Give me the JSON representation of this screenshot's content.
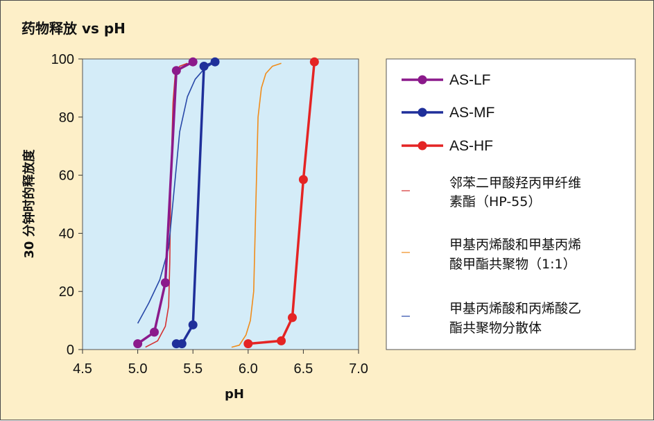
{
  "chart_data": {
    "type": "line",
    "title": "药物释放 vs pH",
    "xlabel": "pH",
    "ylabel": "30 分钟时的释放度",
    "xlim": [
      4.5,
      7.0
    ],
    "ylim": [
      0,
      100
    ],
    "xticks": [
      "4.5",
      "5.0",
      "5.5",
      "6.0",
      "6.5",
      "7.0"
    ],
    "yticks": [
      "0",
      "20",
      "40",
      "60",
      "80",
      "100"
    ],
    "grid": false,
    "legend_position": "right",
    "background_color": "#d4ecf8",
    "frame_color": "#fdefc8",
    "series": [
      {
        "name": "AS-LF",
        "color": "#8b1a8b",
        "markers": true,
        "points": [
          [
            5.0,
            2
          ],
          [
            5.15,
            6
          ],
          [
            5.25,
            23
          ],
          [
            5.35,
            96
          ],
          [
            5.5,
            99
          ]
        ]
      },
      {
        "name": "AS-MF",
        "color": "#1f2f9a",
        "markers": true,
        "points": [
          [
            5.35,
            2
          ],
          [
            5.4,
            2
          ],
          [
            5.5,
            8.5
          ],
          [
            5.6,
            97.5
          ],
          [
            5.7,
            99
          ]
        ]
      },
      {
        "name": "AS-HF",
        "color": "#e42424",
        "markers": true,
        "points": [
          [
            6.0,
            2
          ],
          [
            6.3,
            3
          ],
          [
            6.4,
            11
          ],
          [
            6.5,
            58.5
          ],
          [
            6.6,
            99
          ]
        ]
      },
      {
        "name": "邻苯二甲酸羟丙甲纤维素酯（HP-55）",
        "color": "#d43030",
        "markers": false,
        "points": [
          [
            5.07,
            0.8
          ],
          [
            5.18,
            3
          ],
          [
            5.25,
            8
          ],
          [
            5.28,
            15
          ],
          [
            5.29,
            30
          ],
          [
            5.3,
            60
          ],
          [
            5.32,
            85
          ],
          [
            5.34,
            95
          ],
          [
            5.38,
            97.5
          ],
          [
            5.45,
            98.5
          ]
        ]
      },
      {
        "name": "甲基丙烯酸和甲基丙烯酸甲酯共聚物（1:1）",
        "color": "#f08c1a",
        "markers": false,
        "points": [
          [
            5.85,
            0.8
          ],
          [
            5.92,
            1.5
          ],
          [
            5.98,
            5
          ],
          [
            6.02,
            10
          ],
          [
            6.05,
            20
          ],
          [
            6.07,
            50
          ],
          [
            6.09,
            80
          ],
          [
            6.12,
            90
          ],
          [
            6.16,
            95
          ],
          [
            6.22,
            97.5
          ],
          [
            6.3,
            98.5
          ]
        ]
      },
      {
        "name": "甲基丙烯酸和丙烯酸乙酯共聚物分散体",
        "color": "#2848a8",
        "markers": false,
        "points": [
          [
            5.0,
            9
          ],
          [
            5.1,
            16
          ],
          [
            5.2,
            24
          ],
          [
            5.28,
            35
          ],
          [
            5.33,
            55
          ],
          [
            5.38,
            75
          ],
          [
            5.45,
            87
          ],
          [
            5.52,
            93
          ],
          [
            5.6,
            96.5
          ],
          [
            5.68,
            98.5
          ]
        ]
      }
    ]
  },
  "legend": {
    "items": [
      {
        "line1": "AS-LF",
        "line2": ""
      },
      {
        "line1": "AS-MF",
        "line2": ""
      },
      {
        "line1": "AS-HF",
        "line2": ""
      },
      {
        "line1": "邻苯二甲酸羟丙甲纤维",
        "line2": "素酯（HP-55）"
      },
      {
        "line1": "甲基丙烯酸和甲基丙烯",
        "line2": "酸甲酯共聚物（1:1）"
      },
      {
        "line1": "甲基丙烯酸和丙烯酸乙",
        "line2": "酯共聚物分散体"
      }
    ]
  }
}
